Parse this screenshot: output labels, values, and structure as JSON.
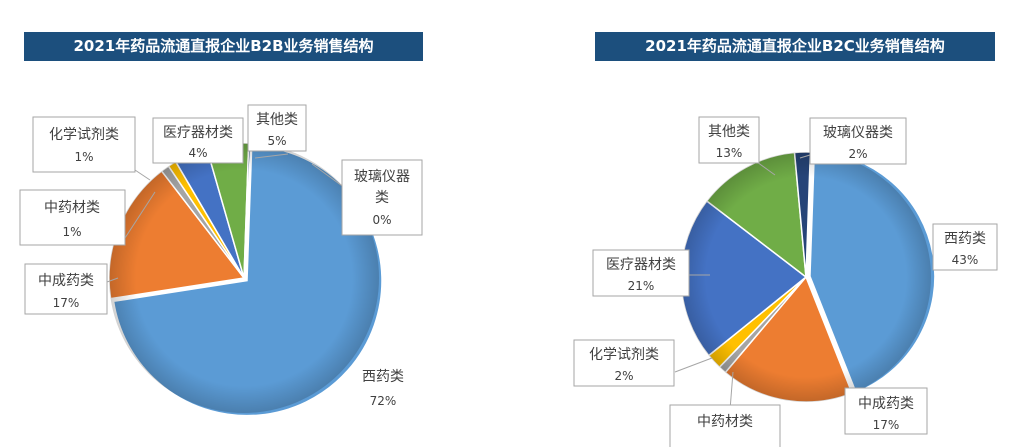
{
  "chart_data": [
    {
      "type": "pie",
      "title": "2021年药品流通直报企业B2B业务销售结构",
      "slices": [
        {
          "name": "西药类",
          "value": 72,
          "label": "72%",
          "color": "#5b9bd5"
        },
        {
          "name": "中成药类",
          "value": 17,
          "label": "17%",
          "color": "#ed7d31"
        },
        {
          "name": "中药材类",
          "value": 1,
          "label": "1%",
          "color": "#a5a5a5"
        },
        {
          "name": "化学试剂类",
          "value": 1,
          "label": "1%",
          "color": "#ffc000"
        },
        {
          "name": "医疗器材类",
          "value": 4,
          "label": "4%",
          "color": "#4472c4"
        },
        {
          "name": "其他类",
          "value": 5,
          "label": "5%",
          "color": "#70ad47"
        },
        {
          "name": "玻璃仪器类",
          "value": 0,
          "label": "0%",
          "color": "#264478"
        }
      ]
    },
    {
      "type": "pie",
      "title": "2021年药品流通直报企业B2C业务销售结构",
      "slices": [
        {
          "name": "西药类",
          "value": 43,
          "label": "43%",
          "color": "#5b9bd5"
        },
        {
          "name": "中成药类",
          "value": 17,
          "label": "17%",
          "color": "#ed7d31"
        },
        {
          "name": "中药材类",
          "value": 1,
          "label": "",
          "color": "#a5a5a5"
        },
        {
          "name": "化学试剂类",
          "value": 2,
          "label": "2%",
          "color": "#ffc000"
        },
        {
          "name": "医疗器材类",
          "value": 21,
          "label": "21%",
          "color": "#4472c4"
        },
        {
          "name": "其他类",
          "value": 13,
          "label": "13%",
          "color": "#70ad47"
        },
        {
          "name": "玻璃仪器类",
          "value": 2,
          "label": "2%",
          "color": "#264478"
        }
      ]
    }
  ],
  "label_text": {
    "b2b_xiyao": "西药类",
    "b2b_xiyao_pct": "72%",
    "b2b_zhongcheng": "中成药类",
    "b2b_zhongcheng_pct": "17%",
    "b2b_zhongyaocai": "中药材类",
    "b2b_zhongyaocai_pct": "1%",
    "b2b_huaxue": "化学试剂类",
    "b2b_huaxue_pct": "1%",
    "b2b_yiliao": "医疗器材类",
    "b2b_yiliao_pct": "4%",
    "b2b_qita": "其他类",
    "b2b_qita_pct": "5%",
    "b2b_boli_1": "玻璃仪器",
    "b2b_boli_2": "类",
    "b2b_boli_pct": "0%",
    "b2c_xiyao": "西药类",
    "b2c_xiyao_pct": "43%",
    "b2c_zhongcheng": "中成药类",
    "b2c_zhongcheng_pct": "17%",
    "b2c_zhongyaocai": "中药材类",
    "b2c_huaxue": "化学试剂类",
    "b2c_huaxue_pct": "2%",
    "b2c_yiliao": "医疗器材类",
    "b2c_yiliao_pct": "21%",
    "b2c_qita": "其他类",
    "b2c_qita_pct": "13%",
    "b2c_boli": "玻璃仪器类",
    "b2c_boli_pct": "2%"
  }
}
